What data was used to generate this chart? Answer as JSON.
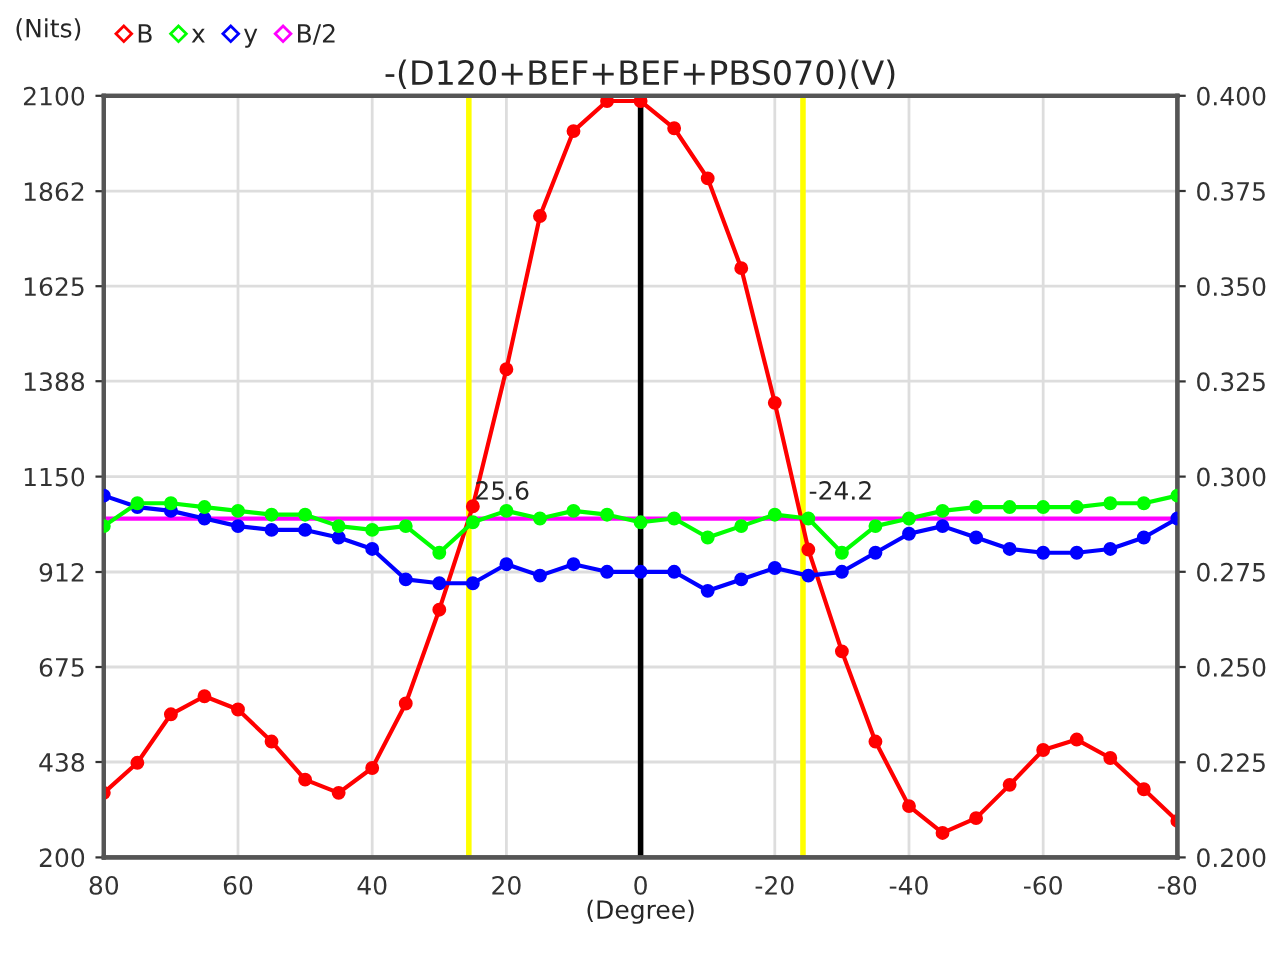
{
  "chart_data": {
    "type": "line",
    "title": "-(D120+BEF+BEF+PBS070)(V)",
    "xlabel": "(Degree)",
    "ylabel": "(Nits)",
    "x": [
      80,
      75,
      70,
      65,
      60,
      55,
      50,
      45,
      40,
      35,
      30,
      25,
      20,
      15,
      10,
      5,
      0,
      -5,
      -10,
      -15,
      -20,
      -25,
      -30,
      -35,
      -40,
      -45,
      -50,
      -55,
      -60,
      -65,
      -70,
      -75,
      -80
    ],
    "series": [
      {
        "name": "B",
        "color": "#ff0000",
        "values": [
          361,
          436,
          557,
          602,
          569,
          489,
          394,
          361,
          423,
          584,
          818,
          1076,
          1418,
          1800,
          2012,
          2087,
          2087,
          2019,
          1894,
          1670,
          1334,
          968,
          714,
          489,
          328,
          261,
          298,
          381,
          468,
          494,
          448,
          370,
          291
        ]
      },
      {
        "name": "x",
        "color": "#00ff00",
        "axis": "y2",
        "values": [
          0.287,
          0.293,
          0.293,
          0.292,
          0.291,
          0.29,
          0.29,
          0.287,
          0.286,
          0.287,
          0.28,
          0.288,
          0.291,
          0.289,
          0.291,
          0.29,
          0.288,
          0.289,
          0.284,
          0.287,
          0.29,
          0.289,
          0.28,
          0.287,
          0.289,
          0.291,
          0.292,
          0.292,
          0.292,
          0.292,
          0.293,
          0.293,
          0.295
        ]
      },
      {
        "name": "y",
        "color": "#0000ff",
        "axis": "y2",
        "values": [
          0.295,
          0.292,
          0.291,
          0.289,
          0.287,
          0.286,
          0.286,
          0.284,
          0.281,
          0.273,
          0.272,
          0.272,
          0.277,
          0.274,
          0.277,
          0.275,
          0.275,
          0.275,
          0.27,
          0.273,
          0.276,
          0.274,
          0.275,
          0.28,
          0.285,
          0.287,
          0.284,
          0.281,
          0.28,
          0.28,
          0.281,
          0.284,
          0.289
        ]
      },
      {
        "name": "B/2",
        "color": "#ff00ff",
        "x": [
          80,
          -80
        ],
        "values": [
          1045,
          1045
        ],
        "marker": "none"
      }
    ],
    "xlim": [
      80,
      -80
    ],
    "xticks": [
      80,
      60,
      40,
      20,
      0,
      -20,
      -40,
      -60,
      -80
    ],
    "ylim": [
      200,
      2100
    ],
    "yticks": [
      200,
      438,
      675,
      912,
      1150,
      1388,
      1625,
      1862,
      2100
    ],
    "y2lim": [
      0.2,
      0.4
    ],
    "y2ticks": [
      {
        "value": 0.2,
        "label": "0.200"
      },
      {
        "value": 0.225,
        "label": "0.225"
      },
      {
        "value": 0.25,
        "label": "0.250"
      },
      {
        "value": 0.275,
        "label": "0.275"
      },
      {
        "value": 0.3,
        "label": "0.300"
      },
      {
        "value": 0.325,
        "label": "0.325"
      },
      {
        "value": 0.35,
        "label": "0.350"
      },
      {
        "value": 0.375,
        "label": "0.375"
      },
      {
        "value": 0.4,
        "label": "0.400"
      }
    ],
    "ref_lines": [
      {
        "axis": "x",
        "value": 25.6,
        "color": "#ffff00"
      },
      {
        "axis": "x",
        "value": -24.2,
        "color": "#ffff00"
      },
      {
        "axis": "x",
        "value": 0,
        "color": "#000000"
      }
    ],
    "annotations": [
      {
        "text": "25.6",
        "x": 25.6,
        "y": 1045
      },
      {
        "text": "-24.2",
        "x": -24.2,
        "y": 1045
      }
    ],
    "grid": true,
    "legend": "top left",
    "marker": "circle",
    "line_style": "solid"
  }
}
